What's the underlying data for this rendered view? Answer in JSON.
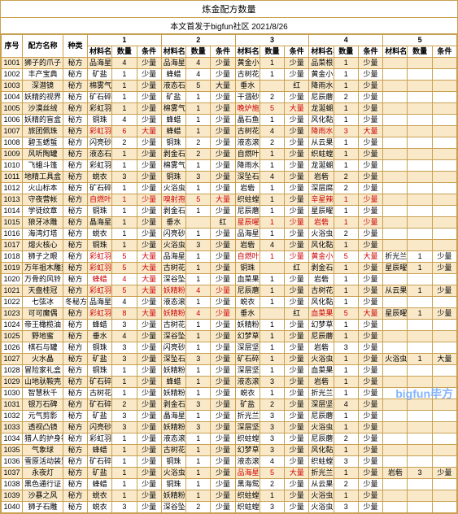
{
  "title": "炼金配方数量",
  "subtitle": "本文首发于bigfun社区 2021/8/26",
  "watermark": "bigfun毕方",
  "headers": {
    "idx": "序号",
    "name": "配方名称",
    "type": "种类",
    "group_numbers": [
      "1",
      "2",
      "3",
      "4",
      "5"
    ],
    "mat": "材料名称",
    "qty": "数量",
    "cond": "条件"
  },
  "colors": {
    "band_bg": "#f9e9c9",
    "border": "#c8a050",
    "red": "#c00"
  },
  "rows": [
    {
      "idx": "1001",
      "name": "狮子的爪子",
      "type": "秘方",
      "m": [
        [
          "品海星",
          "4",
          "少量"
        ],
        [
          "品海星",
          "4",
          "少量"
        ],
        [
          "黄金小麦",
          "1",
          "少量"
        ],
        [
          "品菜根",
          "1",
          "少量"
        ],
        [
          "",
          "",
          ""
        ]
      ]
    },
    {
      "idx": "1002",
      "name": "丰产宝典",
      "type": "秘方",
      "m": [
        [
          "矿盐",
          "1",
          "少量"
        ],
        [
          "蜂蜡",
          "4",
          "少量"
        ],
        [
          "古树花粉",
          "1",
          "少量"
        ],
        [
          "黄金小麦",
          "1",
          "少量"
        ],
        [
          "",
          "",
          ""
        ]
      ]
    },
    {
      "idx": "1003",
      "name": "深潜镜",
      "type": "秘方",
      "m": [
        [
          "棉雾气团",
          "1",
          "少量"
        ],
        [
          "液态石板",
          "5",
          "大量"
        ],
        [
          "垂水",
          "",
          "红"
        ],
        [
          "降雨水仙",
          "1",
          "少量"
        ],
        [
          "",
          "",
          ""
        ]
      ]
    },
    {
      "idx": "1004",
      "name": "妖精的视界",
      "type": "秘方",
      "m": [
        [
          "矿石碎片",
          "1",
          "少量"
        ],
        [
          "矿盐",
          "1",
          "少量"
        ],
        [
          "干涸砂砾",
          "2",
          "少量"
        ],
        [
          "尼辰蘑菇",
          "2",
          "少量"
        ],
        [
          "",
          "",
          ""
        ]
      ]
    },
    {
      "idx": "1005",
      "name": "沙漠丝绒",
      "type": "秘方",
      "m": [
        [
          "彩虹羽翼",
          "1",
          "少量"
        ],
        [
          "棉雾气团",
          "1",
          "少量"
        ],
        [
          "晚炉施子",
          "5",
          "大量",
          "红"
        ],
        [
          "龙涎蝴蝶",
          "1",
          "少量"
        ],
        [
          "",
          "",
          ""
        ]
      ]
    },
    {
      "idx": "1006",
      "name": "妖精的盲盒",
      "type": "秘方",
      "m": [
        [
          "铜珠",
          "4",
          "少量"
        ],
        [
          "蜂蜡",
          "1",
          "少量"
        ],
        [
          "晶石鱼鳞",
          "1",
          "少量"
        ],
        [
          "风化黏土",
          "1",
          "少量"
        ],
        [
          "",
          "",
          ""
        ]
      ]
    },
    {
      "idx": "1007",
      "name": "旅团佩珠",
      "type": "秘方",
      "m": [
        [
          "彩虹羽翼",
          "6",
          "大量",
          "红"
        ],
        [
          "蜂蜡",
          "1",
          "少量"
        ],
        [
          "古树花粉",
          "4",
          "少量"
        ],
        [
          "降雨水仙",
          "3",
          "大量",
          "红"
        ],
        [
          "",
          "",
          ""
        ]
      ]
    },
    {
      "idx": "1008",
      "name": "碧玉蟋蜇",
      "type": "秘方",
      "m": [
        [
          "闪亮砂石",
          "2",
          "少量"
        ],
        [
          "铜珠",
          "2",
          "少量"
        ],
        [
          "液态滚石",
          "2",
          "少量"
        ],
        [
          "从云果",
          "1",
          "少量"
        ],
        [
          "",
          "",
          ""
        ]
      ]
    },
    {
      "idx": "1009",
      "name": "风听陶罐",
      "type": "秘方",
      "m": [
        [
          "液态石板",
          "1",
          "少量"
        ],
        [
          "剥金石板",
          "2",
          "少量"
        ],
        [
          "自燃叶",
          "1",
          "少量"
        ],
        [
          "织蛀螳蜥",
          "1",
          "少量"
        ],
        [
          "",
          "",
          ""
        ]
      ]
    },
    {
      "idx": "1010",
      "name": "飞蛾斗篷",
      "type": "秘方",
      "m": [
        [
          "彩虹羽翼",
          "1",
          "少量"
        ],
        [
          "棉雾气团",
          "1",
          "少量"
        ],
        [
          "降雨水仙",
          "1",
          "少量"
        ],
        [
          "龙涎蝴蝶",
          "1",
          "少量"
        ],
        [
          "",
          "",
          ""
        ]
      ]
    },
    {
      "idx": "1011",
      "name": "地精工具盒",
      "type": "秘方",
      "m": [
        [
          "蜕衣",
          "3",
          "少量"
        ],
        [
          "铜珠",
          "3",
          "少量"
        ],
        [
          "深坠石",
          "4",
          "少量"
        ],
        [
          "岩砦",
          "2",
          "少量"
        ],
        [
          "",
          "",
          ""
        ]
      ]
    },
    {
      "idx": "1012",
      "name": "火山标本",
      "type": "秘方",
      "m": [
        [
          "矿石碎片",
          "1",
          "少量"
        ],
        [
          "火浴虫",
          "1",
          "少量"
        ],
        [
          "岩砦",
          "1",
          "少量"
        ],
        [
          "深层腐壤",
          "2",
          "少量"
        ],
        [
          "",
          "",
          ""
        ]
      ]
    },
    {
      "idx": "1013",
      "name": "守夜营帐",
      "type": "秘方",
      "m": [
        [
          "自燃叶",
          "1",
          "少量",
          "红"
        ],
        [
          "嗅射孢子",
          "5",
          "大量",
          "红"
        ],
        [
          "织蛀螳蜥",
          "1",
          "少量"
        ],
        [
          "辛星辣椒",
          "1",
          "少量",
          "红"
        ],
        [
          "",
          "",
          ""
        ]
      ]
    },
    {
      "idx": "1014",
      "name": "学徒纹章",
      "type": "秘方",
      "m": [
        [
          "铜珠",
          "1",
          "少量"
        ],
        [
          "剥金石板",
          "1",
          "少量"
        ],
        [
          "尼辰蘑菇",
          "1",
          "少量"
        ],
        [
          "星辰曜膏",
          "1",
          "少量"
        ],
        [
          "",
          "",
          ""
        ]
      ]
    },
    {
      "idx": "1015",
      "name": "狼牙冰雕",
      "type": "秘方",
      "m": [
        [
          "晶海星",
          "1",
          "少量"
        ],
        [
          "垂水",
          "",
          "红"
        ],
        [
          "星辰曜膏",
          "1",
          "少量",
          "红"
        ],
        [
          "岩砦",
          "1",
          "少量",
          "红"
        ],
        [
          "",
          "",
          ""
        ]
      ]
    },
    {
      "idx": "1016",
      "name": "海湾灯塔",
      "type": "秘方",
      "m": [
        [
          "蜕衣",
          "1",
          "少量"
        ],
        [
          "闪亮砂石",
          "1",
          "少量"
        ],
        [
          "品海星",
          "1",
          "少量"
        ],
        [
          "火浴虫",
          "2",
          "少量"
        ],
        [
          "",
          "",
          ""
        ]
      ]
    },
    {
      "idx": "1017",
      "name": "熔火核心",
      "type": "秘方",
      "m": [
        [
          "铜珠",
          "1",
          "少量"
        ],
        [
          "火浴虫",
          "3",
          "少量"
        ],
        [
          "岩砦",
          "4",
          "少量"
        ],
        [
          "风化黏土",
          "1",
          "少量"
        ],
        [
          "",
          "",
          ""
        ]
      ]
    },
    {
      "idx": "1018",
      "name": "狮子之眼",
      "type": "秘方",
      "m": [
        [
          "彩虹羽翼",
          "5",
          "大量",
          "红"
        ],
        [
          "品海星",
          "1",
          "少量"
        ],
        [
          "自燃叶",
          "1",
          "少量",
          "红"
        ],
        [
          "黄金小麦",
          "5",
          "大量",
          "红"
        ],
        [
          "折光兰",
          "1",
          "少量"
        ]
      ]
    },
    {
      "idx": "1019",
      "name": "万年祖木雕刻",
      "type": "秘方",
      "m": [
        [
          "彩虹羽翼",
          "5",
          "大量",
          "红"
        ],
        [
          "古树花粉",
          "1",
          "少量"
        ],
        [
          "铜珠",
          "",
          "红"
        ],
        [
          "剥金石板",
          "1",
          "少量"
        ],
        [
          "星辰曜膏",
          "1",
          "少量"
        ]
      ]
    },
    {
      "idx": "1020",
      "name": "万骨的风铃",
      "type": "秘方",
      "m": [
        [
          "蜂蜡",
          "4",
          "大量",
          "红"
        ],
        [
          "深谷坠石",
          "1",
          "少量"
        ],
        [
          "血菜果",
          "1",
          "少量"
        ],
        [
          "岩砦",
          "1",
          "少量"
        ],
        [
          "",
          "",
          ""
        ]
      ]
    },
    {
      "idx": "1021",
      "name": "天盘桂冠",
      "type": "秘方",
      "m": [
        [
          "彩虹羽翼",
          "5",
          "大量",
          "红"
        ],
        [
          "妖精粉尘",
          "4",
          "少量",
          "红"
        ],
        [
          "尼辰蘑菇",
          "1",
          "少量"
        ],
        [
          "古树花粉",
          "1",
          "少量"
        ],
        [
          "从云果",
          "1",
          "少量"
        ]
      ]
    },
    {
      "idx": "1022",
      "name": "七弦冰",
      "type": "冬秘方",
      "m": [
        [
          "品海星",
          "4",
          "少量"
        ],
        [
          "液态滚石",
          "1",
          "少量"
        ],
        [
          "蜕衣",
          "1",
          "少量"
        ],
        [
          "风化黏土",
          "1",
          "少量"
        ],
        [
          "",
          "",
          ""
        ]
      ]
    },
    {
      "idx": "1023",
      "name": "可可魔偶",
      "type": "秘方",
      "m": [
        [
          "彩虹羽翼",
          "8",
          "大量",
          "红"
        ],
        [
          "妖精粉尘",
          "4",
          "少量",
          "红"
        ],
        [
          "垂水",
          "",
          "红"
        ],
        [
          "血菜果",
          "5",
          "大量",
          "红"
        ],
        [
          "星辰曜膏",
          "1",
          "少量"
        ]
      ]
    },
    {
      "idx": "1024",
      "name": "帝王橄榄油",
      "type": "秘方",
      "m": [
        [
          "蜂蜡",
          "3",
          "少量"
        ],
        [
          "古树花粉",
          "1",
          "少量"
        ],
        [
          "妖精粉尘",
          "1",
          "少量"
        ],
        [
          "幻梦草",
          "1",
          "少量"
        ],
        [
          "",
          "",
          ""
        ]
      ]
    },
    {
      "idx": "1025",
      "name": "野地蜜",
      "type": "秘方",
      "m": [
        [
          "垂水",
          "4",
          "少量"
        ],
        [
          "深谷坠石",
          "1",
          "少量"
        ],
        [
          "幻梦草",
          "1",
          "少量"
        ],
        [
          "尼辰蘑菇",
          "1",
          "少量"
        ],
        [
          "",
          "",
          ""
        ]
      ]
    },
    {
      "idx": "1026",
      "name": "棋石与罐",
      "type": "秘方",
      "m": [
        [
          "铜珠",
          "3",
          "少量"
        ],
        [
          "闪亮砂石",
          "1",
          "少量"
        ],
        [
          "深层坚石",
          "1",
          "少量"
        ],
        [
          "岩砦",
          "3",
          "少量"
        ],
        [
          "",
          "",
          ""
        ]
      ]
    },
    {
      "idx": "1027",
      "name": "火水晶",
      "type": "秘方",
      "m": [
        [
          "矿盐",
          "3",
          "少量"
        ],
        [
          "深坠石",
          "3",
          "少量"
        ],
        [
          "矿石碎片",
          "1",
          "少量"
        ],
        [
          "火浴虫",
          "1",
          "少量"
        ],
        [
          "火浴虫",
          "1",
          "大量"
        ]
      ]
    },
    {
      "idx": "1028",
      "name": "冒险家礼盒",
      "type": "秘方",
      "m": [
        [
          "铜珠",
          "1",
          "少量"
        ],
        [
          "妖精粉尘",
          "1",
          "少量"
        ],
        [
          "深层坚石",
          "1",
          "少量"
        ],
        [
          "血菜果",
          "1",
          "少量"
        ],
        [
          "",
          "",
          ""
        ]
      ]
    },
    {
      "idx": "1029",
      "name": "山地驮鞍壳",
      "type": "秘方",
      "m": [
        [
          "矿石碎片",
          "1",
          "少量"
        ],
        [
          "蜂蜡",
          "1",
          "少量"
        ],
        [
          "液态滚石",
          "3",
          "少量"
        ],
        [
          "岩砦",
          "1",
          "少量"
        ],
        [
          "",
          "",
          ""
        ]
      ]
    },
    {
      "idx": "1030",
      "name": "智慧秋千",
      "type": "秘方",
      "m": [
        [
          "古树花粉",
          "1",
          "少量"
        ],
        [
          "妖精粉尘",
          "1",
          "少量"
        ],
        [
          "蜕衣",
          "1",
          "少量"
        ],
        [
          "折光兰",
          "1",
          "少量"
        ],
        [
          "",
          "",
          ""
        ]
      ]
    },
    {
      "idx": "1031",
      "name": "银万石碑",
      "type": "秘方",
      "m": [
        [
          "矿石碎片",
          "2",
          "少量"
        ],
        [
          "剥金石板",
          "3",
          "少量"
        ],
        [
          "矿盐",
          "2",
          "少量"
        ],
        [
          "深层坚石",
          "4",
          "少量"
        ],
        [
          "",
          "",
          ""
        ]
      ]
    },
    {
      "idx": "1032",
      "name": "元气剪影",
      "type": "秘方",
      "m": [
        [
          "矿盐",
          "3",
          "少量"
        ],
        [
          "晶海星",
          "1",
          "少量"
        ],
        [
          "折光兰",
          "3",
          "少量"
        ],
        [
          "尼辰蘑菇",
          "1",
          "少量"
        ],
        [
          "",
          "",
          ""
        ]
      ]
    },
    {
      "idx": "1033",
      "name": "透视凸镜",
      "type": "秘方",
      "m": [
        [
          "闪亮砂石",
          "3",
          "少量"
        ],
        [
          "妖精粉尘",
          "3",
          "少量"
        ],
        [
          "深层坚石",
          "3",
          "少量"
        ],
        [
          "火浴虫",
          "1",
          "少量"
        ],
        [
          "",
          "",
          ""
        ]
      ]
    },
    {
      "idx": "1034",
      "name": "猎人的护身符",
      "type": "秘方",
      "m": [
        [
          "彩虹羽翼",
          "1",
          "少量"
        ],
        [
          "液态滚石",
          "1",
          "少量"
        ],
        [
          "织蛀螳蜥",
          "3",
          "少量"
        ],
        [
          "尼辰蘑菇",
          "2",
          "少量"
        ],
        [
          "",
          "",
          ""
        ]
      ]
    },
    {
      "idx": "1035",
      "name": "气象球",
      "type": "秘方",
      "m": [
        [
          "蜂蜡",
          "1",
          "少量"
        ],
        [
          "古树花粉",
          "1",
          "少量"
        ],
        [
          "幻梦草",
          "3",
          "少量"
        ],
        [
          "风化黏土",
          "1",
          "少量"
        ],
        [
          "",
          "",
          ""
        ]
      ]
    },
    {
      "idx": "1036",
      "name": "雪原活动装置",
      "型": "秘方",
      "type": "秘方",
      "m": [
        [
          "矿石碎片",
          "1",
          "少量"
        ],
        [
          "铜珠",
          "1",
          "少量"
        ],
        [
          "液态滚石",
          "4",
          "少量"
        ],
        [
          "织蛀螳蜥",
          "3",
          "少量"
        ],
        [
          "",
          "",
          ""
        ]
      ]
    },
    {
      "idx": "1037",
      "name": "永夜灯",
      "type": "秘方",
      "m": [
        [
          "矿盐",
          "1",
          "少量"
        ],
        [
          "火浴虫",
          "1",
          "少量"
        ],
        [
          "品海星",
          "5",
          "大量",
          "红"
        ],
        [
          "折光兰",
          "1",
          "少量"
        ],
        [
          "岩砦",
          "3",
          "少量"
        ]
      ]
    },
    {
      "idx": "1038",
      "name": "黑色通行证",
      "type": "秘方",
      "m": [
        [
          "蜂蜡",
          "1",
          "少量"
        ],
        [
          "铜珠",
          "1",
          "少量"
        ],
        [
          "黑海鸳",
          "2",
          "少量"
        ],
        [
          "从云果",
          "2",
          "少量"
        ],
        [
          "",
          "",
          ""
        ]
      ]
    },
    {
      "idx": "1039",
      "name": "沙暴之风",
      "type": "秘方",
      "m": [
        [
          "蜕衣",
          "1",
          "少量"
        ],
        [
          "妖精粉尘",
          "1",
          "少量"
        ],
        [
          "织蛀螳蜥",
          "1",
          "少量"
        ],
        [
          "火浴虫",
          "1",
          "少量"
        ],
        [
          "",
          "",
          ""
        ]
      ]
    },
    {
      "idx": "1040",
      "name": "狮子石雕",
      "type": "秘方",
      "m": [
        [
          "蜕衣",
          "3",
          "少量"
        ],
        [
          "深谷坠石",
          "2",
          "少量"
        ],
        [
          "织蛀螳蜥",
          "3",
          "少量"
        ],
        [
          "火浴虫",
          "3",
          "少量"
        ],
        [
          "",
          "",
          ""
        ]
      ]
    }
  ]
}
